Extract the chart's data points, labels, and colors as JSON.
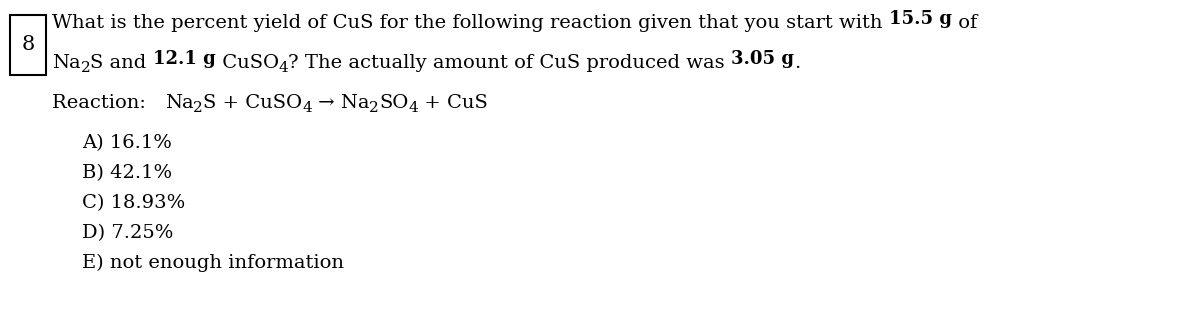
{
  "background_color": "#ffffff",
  "question_number": "8",
  "text_color": "#000000",
  "box_color": "#000000",
  "font_size": 14,
  "font_family": "DejaVu Serif",
  "choices": [
    "A) 16.1%",
    "B) 42.1%",
    "C) 18.93%",
    "D) 7.25%",
    "E) not enough information"
  ]
}
